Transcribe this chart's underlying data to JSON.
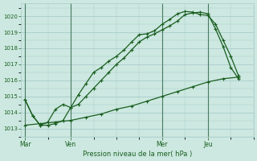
{
  "background_color": "#cce8e0",
  "grid_color": "#aacccc",
  "line_color": "#1a5e20",
  "xlabel": "Pression niveau de la mer( hPa )",
  "ylim": [
    1012.5,
    1020.8
  ],
  "yticks": [
    1013,
    1014,
    1015,
    1016,
    1017,
    1018,
    1019,
    1020
  ],
  "day_labels": [
    "Mar",
    "Ven",
    "Mer",
    "Jeu"
  ],
  "day_positions": [
    0,
    12,
    36,
    48
  ],
  "xlim": [
    -1,
    60
  ],
  "line1_x": [
    0,
    2,
    4,
    6,
    8,
    10,
    12,
    14,
    16,
    18,
    20,
    22,
    24,
    26,
    28,
    30,
    32,
    34,
    36,
    38,
    40,
    42,
    44,
    46,
    48,
    50,
    52,
    54,
    56
  ],
  "line1_y": [
    1014.8,
    1013.8,
    1013.2,
    1013.4,
    1014.2,
    1014.5,
    1014.3,
    1015.1,
    1015.8,
    1016.5,
    1016.8,
    1017.2,
    1017.5,
    1017.9,
    1018.4,
    1018.85,
    1018.9,
    1019.1,
    1019.5,
    1019.8,
    1020.15,
    1020.3,
    1020.25,
    1020.1,
    1020.05,
    1019.5,
    1018.5,
    1017.5,
    1016.3
  ],
  "line2_x": [
    0,
    2,
    4,
    6,
    8,
    10,
    12,
    14,
    16,
    18,
    20,
    22,
    24,
    26,
    28,
    30,
    32,
    34,
    36,
    38,
    40,
    42,
    44,
    46,
    48,
    50,
    52,
    54,
    56
  ],
  "line2_y": [
    1014.8,
    1013.8,
    1013.2,
    1013.2,
    1013.3,
    1013.5,
    1014.3,
    1014.5,
    1015.0,
    1015.5,
    1016.0,
    1016.5,
    1017.0,
    1017.4,
    1017.9,
    1018.4,
    1018.7,
    1018.9,
    1019.15,
    1019.4,
    1019.7,
    1020.1,
    1020.2,
    1020.25,
    1020.15,
    1019.2,
    1018.1,
    1016.8,
    1016.1
  ],
  "line3_x": [
    0,
    4,
    8,
    12,
    16,
    20,
    24,
    28,
    32,
    36,
    40,
    44,
    48,
    52,
    56
  ],
  "line3_y": [
    1013.2,
    1013.3,
    1013.4,
    1013.5,
    1013.7,
    1013.9,
    1014.2,
    1014.4,
    1014.7,
    1015.0,
    1015.3,
    1015.6,
    1015.9,
    1016.1,
    1016.2
  ]
}
